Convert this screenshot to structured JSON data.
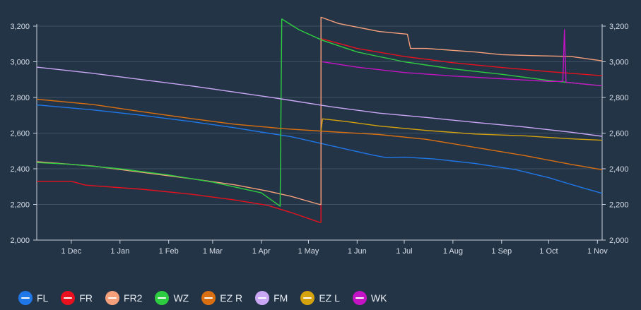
{
  "chart_data": {
    "type": "line",
    "title": "",
    "xlabel": "",
    "ylabel": "",
    "y_axes": "left and right, identical",
    "ylim": [
      2000,
      3200
    ],
    "yticks": [
      2000,
      2200,
      2400,
      2600,
      2800,
      3000,
      3200
    ],
    "ytick_labels": [
      "2,000",
      "2,200",
      "2,400",
      "2,600",
      "2,800",
      "3,000",
      "3,200"
    ],
    "x_start": "2024-11-09",
    "x_end": "2025-11-04",
    "xticks": [
      "2024-12-01",
      "2025-01-01",
      "2025-02-01",
      "2025-03-01",
      "2025-04-01",
      "2025-05-01",
      "2025-06-01",
      "2025-07-01",
      "2025-08-01",
      "2025-09-01",
      "2025-10-01",
      "2025-11-01"
    ],
    "xtick_labels": [
      "1 Dec",
      "1 Jan",
      "1 Feb",
      "1 Mar",
      "1 Apr",
      "1 May",
      "1 Jun",
      "1 Jul",
      "1 Aug",
      "1 Sep",
      "1 Oct",
      "1 Nov"
    ],
    "grid": "horizontal",
    "legend_position": "bottom-left",
    "series": [
      {
        "name": "FL",
        "color": "#1f77e8",
        "points": [
          [
            "2024-11-09",
            2758
          ],
          [
            "2024-12-15",
            2730
          ],
          [
            "2025-01-15",
            2700
          ],
          [
            "2025-02-15",
            2665
          ],
          [
            "2025-03-15",
            2630
          ],
          [
            "2025-04-05",
            2600
          ],
          [
            "2025-04-20",
            2580
          ],
          [
            "2025-05-05",
            2550
          ],
          [
            "2025-05-25",
            2510
          ],
          [
            "2025-06-12",
            2475
          ],
          [
            "2025-06-20",
            2462
          ],
          [
            "2025-07-01",
            2465
          ],
          [
            "2025-07-20",
            2455
          ],
          [
            "2025-08-15",
            2430
          ],
          [
            "2025-09-10",
            2395
          ],
          [
            "2025-10-01",
            2350
          ],
          [
            "2025-10-20",
            2300
          ],
          [
            "2025-11-04",
            2262
          ]
        ]
      },
      {
        "name": "FR",
        "color": "#e8111d",
        "points": [
          [
            "2024-11-09",
            2330
          ],
          [
            "2024-12-01",
            2330
          ],
          [
            "2024-12-10",
            2308
          ],
          [
            "2025-01-15",
            2285
          ],
          [
            "2025-02-15",
            2258
          ],
          [
            "2025-03-15",
            2225
          ],
          [
            "2025-04-05",
            2195
          ],
          [
            "2025-04-20",
            2155
          ],
          [
            "2025-05-08",
            2100
          ],
          [
            "2025-05-09",
            2100
          ],
          [
            "2025-05-09",
            3130
          ],
          [
            "2025-06-01",
            3075
          ],
          [
            "2025-07-01",
            3030
          ],
          [
            "2025-08-01",
            2995
          ],
          [
            "2025-09-01",
            2968
          ],
          [
            "2025-10-01",
            2945
          ],
          [
            "2025-11-04",
            2922
          ]
        ]
      },
      {
        "name": "FR2",
        "color": "#f5a07a",
        "points": [
          [
            "2024-11-09",
            2440
          ],
          [
            "2024-12-15",
            2415
          ],
          [
            "2025-01-15",
            2380
          ],
          [
            "2025-02-15",
            2345
          ],
          [
            "2025-03-15",
            2310
          ],
          [
            "2025-04-05",
            2275
          ],
          [
            "2025-04-20",
            2245
          ],
          [
            "2025-05-08",
            2200
          ],
          [
            "2025-05-09",
            2200
          ],
          [
            "2025-05-09",
            3250
          ],
          [
            "2025-05-20",
            3215
          ],
          [
            "2025-06-15",
            3170
          ],
          [
            "2025-07-03",
            3155
          ],
          [
            "2025-07-05",
            3075
          ],
          [
            "2025-07-15",
            3075
          ],
          [
            "2025-08-15",
            3055
          ],
          [
            "2025-09-01",
            3040
          ],
          [
            "2025-09-20",
            3035
          ],
          [
            "2025-10-15",
            3030
          ],
          [
            "2025-11-04",
            3005
          ]
        ]
      },
      {
        "name": "WZ",
        "color": "#2ecc40",
        "points": [
          [
            "2024-11-09",
            2435
          ],
          [
            "2024-12-01",
            2425
          ],
          [
            "2025-01-01",
            2400
          ],
          [
            "2025-02-01",
            2365
          ],
          [
            "2025-03-01",
            2325
          ],
          [
            "2025-04-01",
            2265
          ],
          [
            "2025-04-13",
            2190
          ],
          [
            "2025-04-14",
            3240
          ],
          [
            "2025-04-25",
            3180
          ],
          [
            "2025-05-10",
            3120
          ],
          [
            "2025-06-01",
            3055
          ],
          [
            "2025-07-01",
            3000
          ],
          [
            "2025-08-01",
            2960
          ],
          [
            "2025-09-01",
            2930
          ],
          [
            "2025-10-01",
            2895
          ],
          [
            "2025-11-04",
            2865
          ]
        ]
      },
      {
        "name": "EZ R",
        "color": "#d96f10",
        "points": [
          [
            "2024-11-09",
            2790
          ],
          [
            "2024-12-15",
            2760
          ],
          [
            "2025-01-15",
            2720
          ],
          [
            "2025-02-15",
            2682
          ],
          [
            "2025-03-15",
            2650
          ],
          [
            "2025-04-15",
            2625
          ],
          [
            "2025-05-15",
            2608
          ],
          [
            "2025-06-15",
            2592
          ],
          [
            "2025-07-15",
            2565
          ],
          [
            "2025-08-15",
            2520
          ],
          [
            "2025-09-15",
            2475
          ],
          [
            "2025-10-15",
            2425
          ],
          [
            "2025-11-04",
            2395
          ]
        ]
      },
      {
        "name": "FM",
        "color": "#c9a7f5",
        "points": [
          [
            "2024-11-09",
            2970
          ],
          [
            "2024-12-15",
            2935
          ],
          [
            "2025-01-15",
            2900
          ],
          [
            "2025-02-15",
            2865
          ],
          [
            "2025-03-15",
            2830
          ],
          [
            "2025-04-15",
            2790
          ],
          [
            "2025-05-15",
            2748
          ],
          [
            "2025-06-15",
            2712
          ],
          [
            "2025-07-15",
            2688
          ],
          [
            "2025-08-15",
            2660
          ],
          [
            "2025-09-15",
            2635
          ],
          [
            "2025-10-15",
            2605
          ],
          [
            "2025-11-04",
            2582
          ]
        ]
      },
      {
        "name": "EZ L",
        "color": "#d4a20c",
        "points": [
          [
            "2025-05-09",
            2610
          ],
          [
            "2025-05-10",
            2680
          ],
          [
            "2025-05-25",
            2665
          ],
          [
            "2025-06-15",
            2640
          ],
          [
            "2025-07-15",
            2615
          ],
          [
            "2025-08-15",
            2595
          ],
          [
            "2025-09-15",
            2585
          ],
          [
            "2025-10-15",
            2568
          ],
          [
            "2025-11-04",
            2560
          ]
        ]
      },
      {
        "name": "WK",
        "color": "#c413c4",
        "points": [
          [
            "2025-05-10",
            3000
          ],
          [
            "2025-06-01",
            2970
          ],
          [
            "2025-07-01",
            2940
          ],
          [
            "2025-08-01",
            2920
          ],
          [
            "2025-09-01",
            2905
          ],
          [
            "2025-10-01",
            2890
          ],
          [
            "2025-10-10",
            2890
          ],
          [
            "2025-10-11",
            3180
          ],
          [
            "2025-10-12",
            2885
          ],
          [
            "2025-11-04",
            2865
          ]
        ]
      }
    ]
  }
}
